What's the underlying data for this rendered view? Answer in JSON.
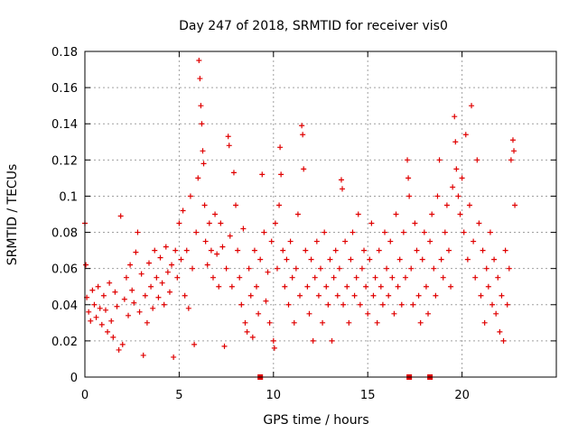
{
  "chart_data": {
    "type": "scatter",
    "title": "Day 247 of 2018, SRMTID for receiver vis0",
    "xlabel": "GPS time / hours",
    "ylabel": "SRMTID / TECUs",
    "xlim": [
      0,
      25
    ],
    "ylim": [
      0,
      0.18
    ],
    "xticks": [
      0,
      5,
      10,
      15,
      20
    ],
    "xtick_labels": [
      "0",
      "5",
      "10",
      "15",
      "20"
    ],
    "yticks": [
      0,
      0.02,
      0.04,
      0.06,
      0.08,
      0.1,
      0.12,
      0.14,
      0.16,
      0.18
    ],
    "ytick_labels": [
      "0",
      "0.02",
      "0.04",
      "0.06",
      "0.08",
      "0.1",
      "0.12",
      "0.14",
      "0.16",
      "0.18"
    ],
    "grid": true,
    "series": [
      {
        "name": "SRMTID",
        "marker": "+",
        "color": "#e00000",
        "points": [
          [
            0.0,
            0.085
          ],
          [
            0.05,
            0.062
          ],
          [
            0.1,
            0.044
          ],
          [
            0.2,
            0.036
          ],
          [
            0.3,
            0.031
          ],
          [
            0.4,
            0.048
          ],
          [
            0.5,
            0.04
          ],
          [
            0.6,
            0.033
          ],
          [
            0.7,
            0.05
          ],
          [
            0.8,
            0.038
          ],
          [
            0.9,
            0.029
          ],
          [
            1.0,
            0.045
          ],
          [
            1.1,
            0.037
          ],
          [
            1.2,
            0.025
          ],
          [
            1.3,
            0.052
          ],
          [
            1.4,
            0.031
          ],
          [
            1.5,
            0.022
          ],
          [
            1.6,
            0.047
          ],
          [
            1.7,
            0.039
          ],
          [
            1.8,
            0.015
          ],
          [
            1.9,
            0.089
          ],
          [
            2.0,
            0.018
          ],
          [
            2.1,
            0.043
          ],
          [
            2.2,
            0.055
          ],
          [
            2.3,
            0.034
          ],
          [
            2.4,
            0.062
          ],
          [
            2.5,
            0.048
          ],
          [
            2.6,
            0.041
          ],
          [
            2.7,
            0.069
          ],
          [
            2.8,
            0.08
          ],
          [
            2.9,
            0.036
          ],
          [
            3.0,
            0.057
          ],
          [
            3.1,
            0.012
          ],
          [
            3.2,
            0.045
          ],
          [
            3.3,
            0.03
          ],
          [
            3.4,
            0.063
          ],
          [
            3.5,
            0.05
          ],
          [
            3.6,
            0.038
          ],
          [
            3.7,
            0.07
          ],
          [
            3.8,
            0.055
          ],
          [
            3.9,
            0.044
          ],
          [
            4.0,
            0.066
          ],
          [
            4.1,
            0.052
          ],
          [
            4.2,
            0.04
          ],
          [
            4.3,
            0.072
          ],
          [
            4.4,
            0.058
          ],
          [
            4.5,
            0.047
          ],
          [
            4.6,
            0.062
          ],
          [
            4.7,
            0.011
          ],
          [
            4.8,
            0.07
          ],
          [
            4.9,
            0.055
          ],
          [
            5.0,
            0.085
          ],
          [
            5.1,
            0.065
          ],
          [
            5.2,
            0.092
          ],
          [
            5.3,
            0.045
          ],
          [
            5.4,
            0.07
          ],
          [
            5.5,
            0.038
          ],
          [
            5.6,
            0.1
          ],
          [
            5.7,
            0.06
          ],
          [
            5.8,
            0.018
          ],
          [
            5.9,
            0.08
          ],
          [
            6.0,
            0.11
          ],
          [
            6.05,
            0.175
          ],
          [
            6.1,
            0.165
          ],
          [
            6.15,
            0.15
          ],
          [
            6.2,
            0.14
          ],
          [
            6.25,
            0.125
          ],
          [
            6.3,
            0.118
          ],
          [
            6.35,
            0.095
          ],
          [
            6.4,
            0.075
          ],
          [
            6.5,
            0.062
          ],
          [
            6.6,
            0.085
          ],
          [
            6.7,
            0.07
          ],
          [
            6.8,
            0.055
          ],
          [
            6.9,
            0.09
          ],
          [
            7.0,
            0.068
          ],
          [
            7.1,
            0.05
          ],
          [
            7.2,
            0.085
          ],
          [
            7.3,
            0.072
          ],
          [
            7.4,
            0.017
          ],
          [
            7.5,
            0.06
          ],
          [
            7.6,
            0.133
          ],
          [
            7.65,
            0.128
          ],
          [
            7.7,
            0.078
          ],
          [
            7.8,
            0.05
          ],
          [
            7.9,
            0.113
          ],
          [
            8.0,
            0.095
          ],
          [
            8.1,
            0.07
          ],
          [
            8.2,
            0.055
          ],
          [
            8.3,
            0.04
          ],
          [
            8.4,
            0.082
          ],
          [
            8.5,
            0.03
          ],
          [
            8.6,
            0.025
          ],
          [
            8.7,
            0.06
          ],
          [
            8.8,
            0.045
          ],
          [
            8.9,
            0.022
          ],
          [
            9.0,
            0.07
          ],
          [
            9.1,
            0.05
          ],
          [
            9.2,
            0.035
          ],
          [
            9.3,
            0.065
          ],
          [
            9.4,
            0.112
          ],
          [
            9.5,
            0.08
          ],
          [
            9.6,
            0.042
          ],
          [
            9.7,
            0.058
          ],
          [
            9.8,
            0.03
          ],
          [
            9.9,
            0.075
          ],
          [
            10.0,
            0.02
          ],
          [
            10.05,
            0.016
          ],
          [
            10.1,
            0.085
          ],
          [
            10.2,
            0.06
          ],
          [
            10.3,
            0.095
          ],
          [
            10.35,
            0.127
          ],
          [
            10.4,
            0.112
          ],
          [
            10.5,
            0.07
          ],
          [
            10.6,
            0.05
          ],
          [
            10.7,
            0.065
          ],
          [
            10.8,
            0.04
          ],
          [
            10.9,
            0.075
          ],
          [
            11.0,
            0.055
          ],
          [
            11.1,
            0.03
          ],
          [
            11.2,
            0.06
          ],
          [
            11.3,
            0.09
          ],
          [
            11.4,
            0.045
          ],
          [
            11.5,
            0.139
          ],
          [
            11.55,
            0.134
          ],
          [
            11.6,
            0.115
          ],
          [
            11.7,
            0.07
          ],
          [
            11.8,
            0.05
          ],
          [
            11.9,
            0.035
          ],
          [
            12.0,
            0.065
          ],
          [
            12.1,
            0.02
          ],
          [
            12.2,
            0.055
          ],
          [
            12.3,
            0.075
          ],
          [
            12.4,
            0.045
          ],
          [
            12.5,
            0.06
          ],
          [
            12.6,
            0.03
          ],
          [
            12.7,
            0.08
          ],
          [
            12.8,
            0.05
          ],
          [
            12.9,
            0.04
          ],
          [
            13.0,
            0.065
          ],
          [
            13.1,
            0.02
          ],
          [
            13.2,
            0.055
          ],
          [
            13.3,
            0.07
          ],
          [
            13.4,
            0.045
          ],
          [
            13.5,
            0.06
          ],
          [
            13.6,
            0.109
          ],
          [
            13.65,
            0.104
          ],
          [
            13.7,
            0.04
          ],
          [
            13.8,
            0.075
          ],
          [
            13.9,
            0.05
          ],
          [
            14.0,
            0.03
          ],
          [
            14.1,
            0.065
          ],
          [
            14.2,
            0.08
          ],
          [
            14.3,
            0.045
          ],
          [
            14.4,
            0.055
          ],
          [
            14.5,
            0.09
          ],
          [
            14.6,
            0.04
          ],
          [
            14.7,
            0.06
          ],
          [
            14.8,
            0.07
          ],
          [
            14.9,
            0.05
          ],
          [
            15.0,
            0.035
          ],
          [
            15.1,
            0.065
          ],
          [
            15.2,
            0.085
          ],
          [
            15.3,
            0.045
          ],
          [
            15.4,
            0.055
          ],
          [
            15.5,
            0.03
          ],
          [
            15.6,
            0.07
          ],
          [
            15.7,
            0.05
          ],
          [
            15.8,
            0.04
          ],
          [
            15.9,
            0.08
          ],
          [
            16.0,
            0.06
          ],
          [
            16.1,
            0.045
          ],
          [
            16.2,
            0.075
          ],
          [
            16.3,
            0.055
          ],
          [
            16.4,
            0.035
          ],
          [
            16.5,
            0.09
          ],
          [
            16.6,
            0.05
          ],
          [
            16.7,
            0.065
          ],
          [
            16.8,
            0.04
          ],
          [
            16.9,
            0.08
          ],
          [
            17.0,
            0.055
          ],
          [
            17.1,
            0.12
          ],
          [
            17.15,
            0.11
          ],
          [
            17.2,
            0.1
          ],
          [
            17.3,
            0.06
          ],
          [
            17.4,
            0.04
          ],
          [
            17.5,
            0.085
          ],
          [
            17.6,
            0.07
          ],
          [
            17.7,
            0.045
          ],
          [
            17.8,
            0.03
          ],
          [
            17.9,
            0.065
          ],
          [
            18.0,
            0.08
          ],
          [
            18.1,
            0.05
          ],
          [
            18.2,
            0.035
          ],
          [
            18.3,
            0.075
          ],
          [
            18.4,
            0.09
          ],
          [
            18.5,
            0.06
          ],
          [
            18.6,
            0.045
          ],
          [
            18.7,
            0.1
          ],
          [
            18.8,
            0.12
          ],
          [
            18.9,
            0.065
          ],
          [
            19.0,
            0.055
          ],
          [
            19.1,
            0.08
          ],
          [
            19.2,
            0.095
          ],
          [
            19.3,
            0.07
          ],
          [
            19.4,
            0.05
          ],
          [
            19.5,
            0.105
          ],
          [
            19.6,
            0.144
          ],
          [
            19.65,
            0.13
          ],
          [
            19.7,
            0.115
          ],
          [
            19.8,
            0.1
          ],
          [
            19.9,
            0.09
          ],
          [
            20.0,
            0.11
          ],
          [
            20.1,
            0.08
          ],
          [
            20.2,
            0.134
          ],
          [
            20.3,
            0.065
          ],
          [
            20.4,
            0.095
          ],
          [
            20.5,
            0.15
          ],
          [
            20.6,
            0.075
          ],
          [
            20.7,
            0.055
          ],
          [
            20.8,
            0.12
          ],
          [
            20.9,
            0.085
          ],
          [
            21.0,
            0.045
          ],
          [
            21.1,
            0.07
          ],
          [
            21.2,
            0.03
          ],
          [
            21.3,
            0.06
          ],
          [
            21.4,
            0.05
          ],
          [
            21.5,
            0.08
          ],
          [
            21.6,
            0.04
          ],
          [
            21.7,
            0.065
          ],
          [
            21.8,
            0.035
          ],
          [
            21.9,
            0.055
          ],
          [
            22.0,
            0.025
          ],
          [
            22.1,
            0.045
          ],
          [
            22.2,
            0.02
          ],
          [
            22.3,
            0.07
          ],
          [
            22.4,
            0.04
          ],
          [
            22.5,
            0.06
          ],
          [
            22.6,
            0.12
          ],
          [
            22.7,
            0.131
          ],
          [
            22.75,
            0.125
          ],
          [
            22.8,
            0.095
          ]
        ]
      },
      {
        "name": "data gaps",
        "marker": "square",
        "color": "#e00000",
        "points": [
          [
            9.3,
            0
          ],
          [
            17.2,
            0
          ],
          [
            18.3,
            0
          ]
        ]
      }
    ]
  }
}
